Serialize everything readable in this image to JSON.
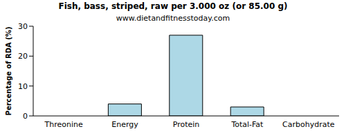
{
  "chart_data": {
    "type": "bar",
    "title": "Fish, bass, striped, raw per 3.000 oz (or 85.00 g)",
    "subtitle": "www.dietandfitnesstoday.com",
    "y_label": "Percentage of RDA (%)",
    "categories": [
      "Threonine",
      "Energy",
      "Protein",
      "Total-Fat",
      "Carbohydrate"
    ],
    "values": [
      0,
      4,
      27,
      3,
      0
    ],
    "color": "#add8e6",
    "ylim": [
      0,
      30
    ],
    "yticks": [
      0,
      10,
      20,
      30
    ],
    "grid": false
  }
}
